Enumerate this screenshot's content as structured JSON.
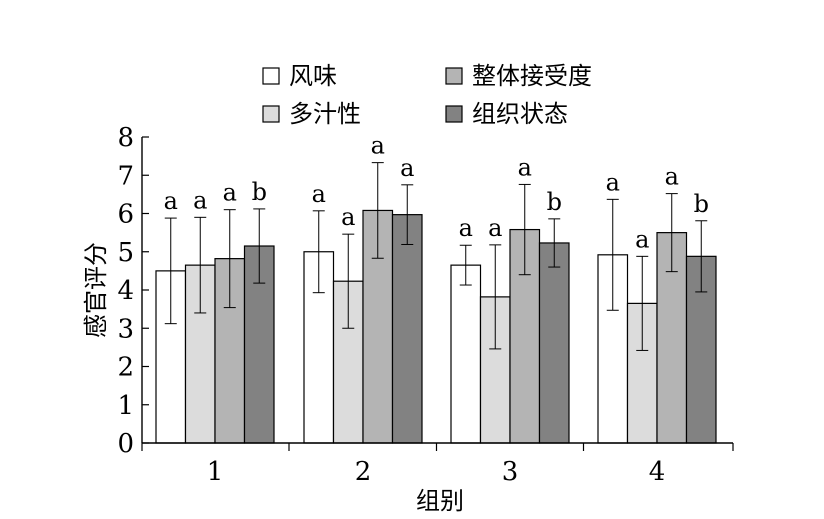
{
  "chart_data": {
    "type": "bar",
    "xlabel": "组别",
    "ylabel": "感官评分",
    "ylim": [
      0,
      8
    ],
    "yticks": [
      0,
      1,
      2,
      3,
      4,
      5,
      6,
      7,
      8
    ],
    "categories": [
      "1",
      "2",
      "3",
      "4"
    ],
    "legend_position": "top",
    "series": [
      {
        "name": "风味",
        "color": "#ffffff",
        "values": [
          4.5,
          5.0,
          4.65,
          4.92
        ],
        "errors": [
          1.38,
          1.07,
          0.52,
          1.45
        ],
        "labels": [
          "a",
          "a",
          "a",
          "a"
        ]
      },
      {
        "name": "多汁性",
        "color": "#dcdcdc",
        "values": [
          4.65,
          4.23,
          3.82,
          3.65
        ],
        "errors": [
          1.25,
          1.23,
          1.36,
          1.23
        ],
        "labels": [
          "a",
          "a",
          "a",
          "a"
        ]
      },
      {
        "name": "整体接受度",
        "color": "#b4b4b4",
        "values": [
          4.82,
          6.08,
          5.58,
          5.5
        ],
        "errors": [
          1.28,
          1.25,
          1.18,
          1.02
        ],
        "labels": [
          "a",
          "a",
          "a",
          "a"
        ]
      },
      {
        "name": "组织状态",
        "color": "#828282",
        "values": [
          5.15,
          5.97,
          5.23,
          4.88
        ],
        "errors": [
          0.97,
          0.78,
          0.63,
          0.93
        ],
        "labels": [
          "b",
          "a",
          "b",
          "b"
        ]
      }
    ]
  }
}
